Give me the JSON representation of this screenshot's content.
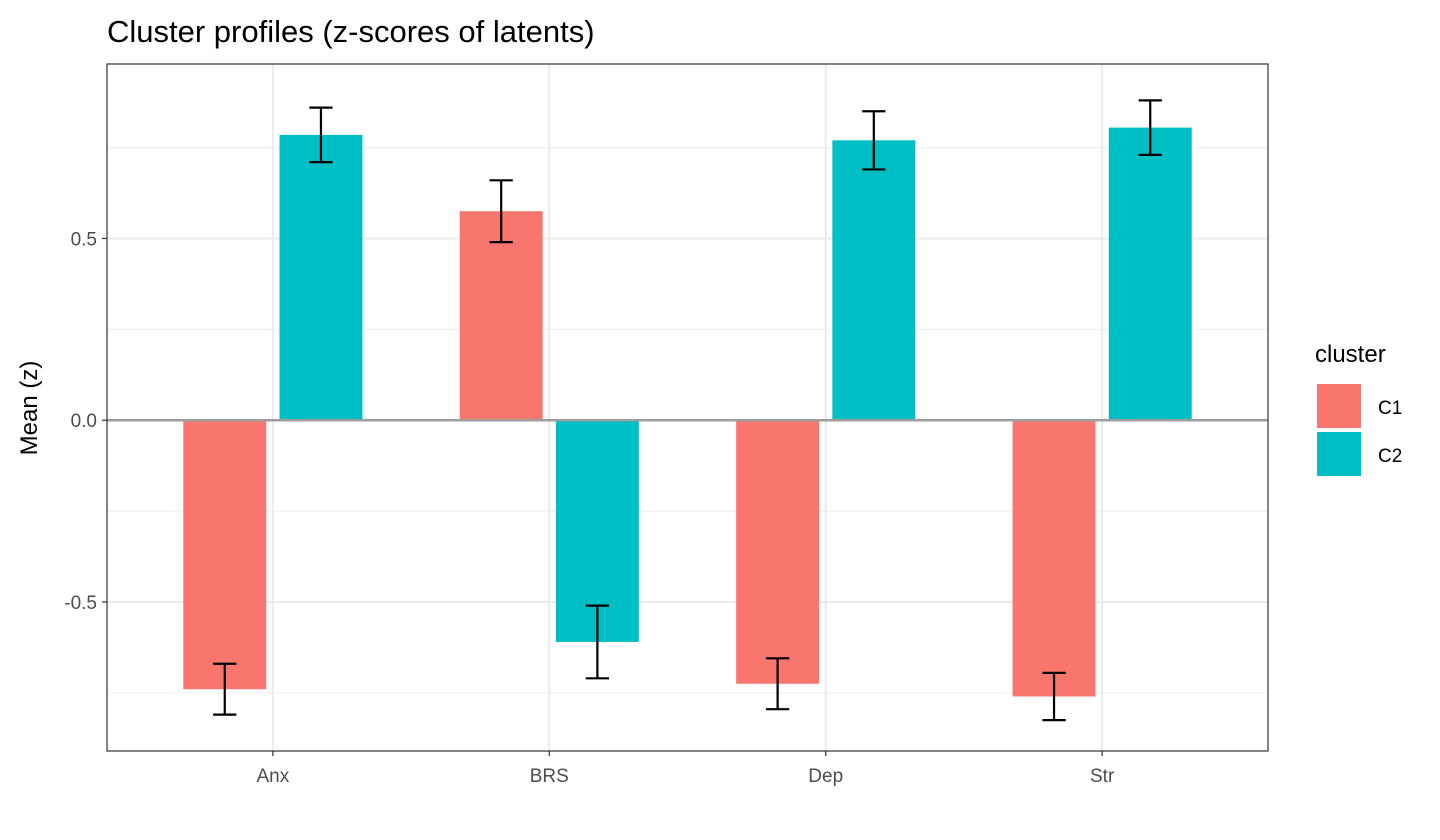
{
  "chart_data": {
    "type": "bar",
    "title": "Cluster profiles (z-scores of latents)",
    "xlabel": "",
    "ylabel": "Mean (z)",
    "categories": [
      "Anx",
      "BRS",
      "Dep",
      "Str"
    ],
    "series": [
      {
        "name": "C1",
        "color": "#F8766D",
        "values": [
          -0.74,
          0.575,
          -0.725,
          -0.76
        ],
        "err_low": [
          -0.81,
          0.49,
          -0.795,
          -0.825
        ],
        "err_high": [
          -0.67,
          0.66,
          -0.655,
          -0.695
        ]
      },
      {
        "name": "C2",
        "color": "#00BFC4",
        "values": [
          0.785,
          -0.61,
          0.77,
          0.805
        ],
        "err_low": [
          0.71,
          -0.71,
          0.69,
          0.73
        ],
        "err_high": [
          0.86,
          -0.51,
          0.85,
          0.88
        ]
      }
    ],
    "ylim": [
      -0.91,
      0.98
    ],
    "yticks": [
      -0.5,
      0.0,
      0.5
    ],
    "ytick_labels": [
      "-0.5",
      "0.0",
      "0.5"
    ],
    "y_minor_ticks": [
      -0.75,
      -0.25,
      0.25,
      0.75
    ],
    "grid": true,
    "zero_line": true,
    "legend": {
      "title": "cluster",
      "position": "right"
    }
  }
}
